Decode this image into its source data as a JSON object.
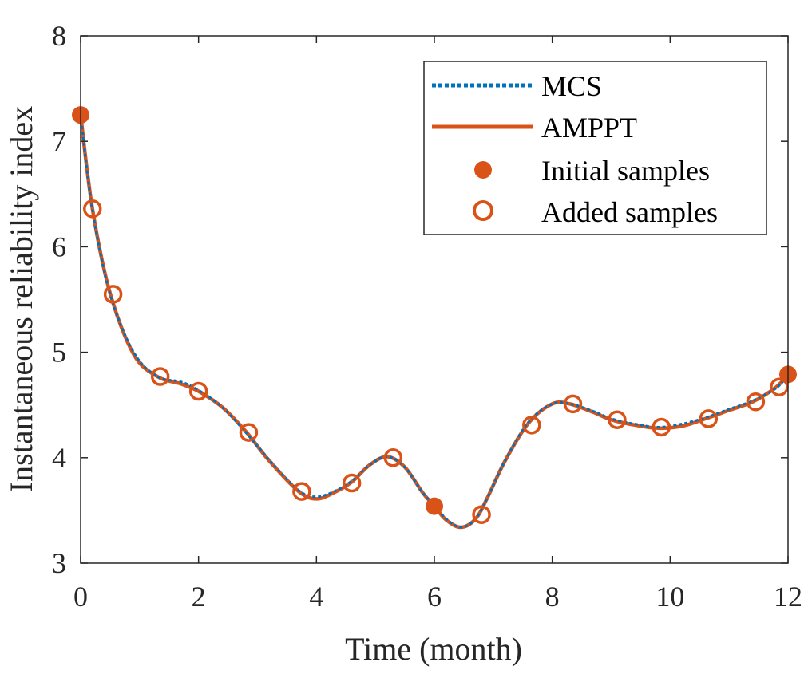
{
  "chart_data": {
    "type": "line",
    "xlabel": "Time (month)",
    "ylabel": "Instantaneous reliability index",
    "xlim": [
      0,
      12
    ],
    "ylim": [
      3,
      8
    ],
    "xticks": [
      "0",
      "2",
      "4",
      "6",
      "8",
      "10",
      "12"
    ],
    "yticks": [
      "3",
      "4",
      "5",
      "6",
      "7",
      "8"
    ],
    "grid": false,
    "legend_position": "top-right",
    "legend": {
      "mcs": "MCS",
      "ampt": "AMPPT",
      "initial": "Initial samples",
      "added": "Added samples"
    },
    "colors": {
      "mcs": "#0072BD",
      "ampt": "#D95319",
      "axis": "#262626"
    },
    "curve_x": [
      0,
      0.2,
      0.5,
      0.9,
      1.3,
      1.7,
      2.0,
      2.4,
      2.8,
      3.2,
      3.7,
      4.0,
      4.3,
      4.6,
      4.9,
      5.2,
      5.5,
      5.8,
      6.0,
      6.2,
      6.45,
      6.7,
      6.9,
      7.2,
      7.6,
      8.0,
      8.3,
      8.7,
      9.0,
      9.4,
      9.8,
      10.2,
      10.6,
      11.0,
      11.4,
      11.8,
      12.0
    ],
    "series": [
      {
        "key": "mcs",
        "y": [
          7.25,
          6.35,
          5.55,
          5.0,
          4.77,
          4.72,
          4.64,
          4.48,
          4.24,
          3.98,
          3.69,
          3.63,
          3.68,
          3.78,
          3.93,
          4.01,
          3.91,
          3.67,
          3.55,
          3.42,
          3.34,
          3.42,
          3.62,
          3.97,
          4.34,
          4.51,
          4.51,
          4.44,
          4.37,
          4.32,
          4.29,
          4.32,
          4.38,
          4.46,
          4.54,
          4.66,
          4.79
        ]
      },
      {
        "key": "ampt",
        "y": [
          7.25,
          6.36,
          5.56,
          4.98,
          4.77,
          4.7,
          4.63,
          4.48,
          4.25,
          3.97,
          3.68,
          3.61,
          3.67,
          3.77,
          3.93,
          4.01,
          3.91,
          3.67,
          3.54,
          3.41,
          3.34,
          3.42,
          3.62,
          3.97,
          4.33,
          4.51,
          4.51,
          4.43,
          4.36,
          4.31,
          4.28,
          4.3,
          4.37,
          4.45,
          4.53,
          4.67,
          4.79
        ]
      }
    ],
    "initial_samples": [
      {
        "x": 0,
        "y": 7.25
      },
      {
        "x": 6.0,
        "y": 3.54
      },
      {
        "x": 12.0,
        "y": 4.79
      }
    ],
    "added_samples": [
      {
        "x": 0.2,
        "y": 6.36
      },
      {
        "x": 0.55,
        "y": 5.55
      },
      {
        "x": 1.35,
        "y": 4.77
      },
      {
        "x": 2.0,
        "y": 4.63
      },
      {
        "x": 2.85,
        "y": 4.24
      },
      {
        "x": 3.75,
        "y": 3.68
      },
      {
        "x": 4.6,
        "y": 3.76
      },
      {
        "x": 5.3,
        "y": 4.0
      },
      {
        "x": 6.8,
        "y": 3.46
      },
      {
        "x": 7.65,
        "y": 4.31
      },
      {
        "x": 8.35,
        "y": 4.51
      },
      {
        "x": 9.1,
        "y": 4.36
      },
      {
        "x": 9.85,
        "y": 4.29
      },
      {
        "x": 10.65,
        "y": 4.37
      },
      {
        "x": 11.45,
        "y": 4.53
      },
      {
        "x": 11.85,
        "y": 4.67
      }
    ]
  }
}
